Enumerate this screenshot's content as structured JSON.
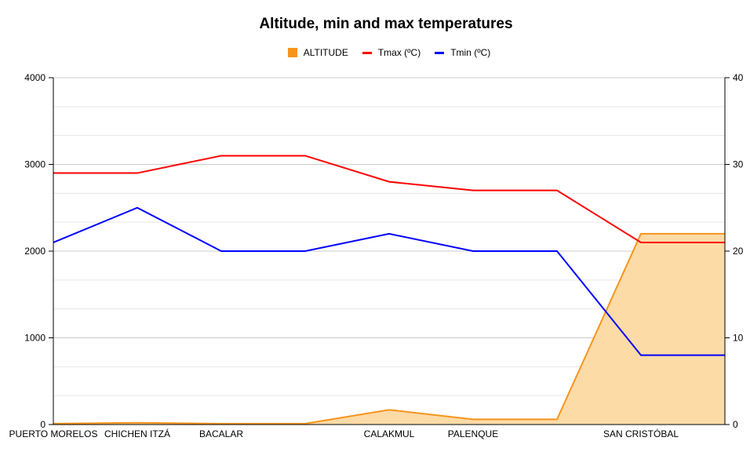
{
  "chart_data": {
    "type": "line",
    "title": "Altitude, min and max temperatures",
    "categories": [
      "PUERTO MORELOS",
      "CHICHEN ITZÁ",
      "BACALAR",
      "",
      "CALAKMUL",
      "PALENQUE",
      "",
      "SAN CRISTÓBAL",
      ""
    ],
    "series": [
      {
        "name": "ALTITUDE",
        "axis": "left",
        "style": "area",
        "color": "#f7941d",
        "fill": "#fddba7",
        "values": [
          10,
          20,
          10,
          10,
          170,
          60,
          60,
          2200,
          2200
        ]
      },
      {
        "name": "Tmax (ºC)",
        "axis": "right",
        "style": "line",
        "color": "#ff0000",
        "values": [
          29,
          29,
          31,
          31,
          28,
          27,
          27,
          21,
          21
        ]
      },
      {
        "name": "Tmin (ºC)",
        "axis": "right",
        "style": "line",
        "color": "#0000ff",
        "values": [
          21,
          25,
          20,
          20,
          22,
          20,
          20,
          8,
          8
        ]
      }
    ],
    "left_axis": {
      "ylim": [
        0,
        4000
      ],
      "ticks": [
        "0",
        "1000",
        "2000",
        "3000",
        "4000"
      ]
    },
    "right_axis": {
      "ylim": [
        0,
        40
      ],
      "ticks": [
        "0",
        "10",
        "20",
        "30",
        "40"
      ]
    },
    "grid": true,
    "legend": "top"
  }
}
